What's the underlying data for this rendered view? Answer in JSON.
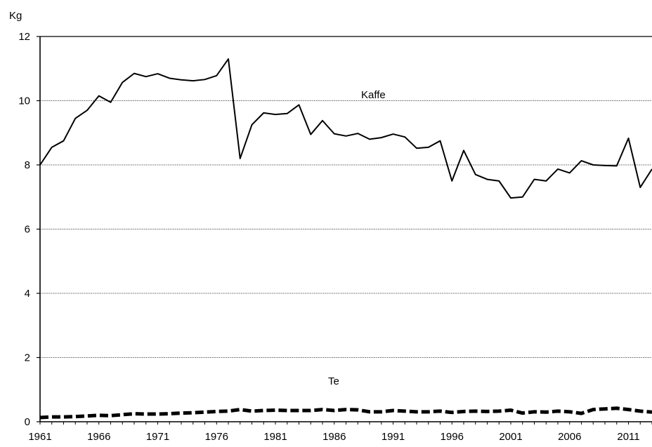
{
  "chart_data": {
    "type": "line",
    "ylabel": "Kg",
    "ylim": [
      0,
      12
    ],
    "yticks": [
      0,
      2,
      4,
      6,
      8,
      10,
      12
    ],
    "xlim": [
      1961,
      2013
    ],
    "xticks": [
      1961,
      1966,
      1971,
      1976,
      1981,
      1986,
      1991,
      1996,
      2001,
      2006,
      2011
    ],
    "grid": "horizontal dotted",
    "series": [
      {
        "name": "Kaffe",
        "style": "solid",
        "x": [
          1961,
          1962,
          1963,
          1964,
          1965,
          1966,
          1967,
          1968,
          1969,
          1970,
          1971,
          1972,
          1973,
          1974,
          1975,
          1976,
          1977,
          1978,
          1979,
          1980,
          1981,
          1982,
          1983,
          1984,
          1985,
          1986,
          1987,
          1988,
          1989,
          1990,
          1991,
          1992,
          1993,
          1994,
          1995,
          1996,
          1997,
          1998,
          1999,
          2000,
          2001,
          2002,
          2003,
          2004,
          2005,
          2006,
          2007,
          2008,
          2009,
          2010,
          2011,
          2012,
          2013
        ],
        "values": [
          8.0,
          8.55,
          8.75,
          9.45,
          9.7,
          10.15,
          9.95,
          10.57,
          10.85,
          10.75,
          10.84,
          10.7,
          10.65,
          10.62,
          10.66,
          10.78,
          11.3,
          8.2,
          9.25,
          9.62,
          9.57,
          9.6,
          9.87,
          8.95,
          9.38,
          8.97,
          8.9,
          8.98,
          8.8,
          8.85,
          8.96,
          8.87,
          8.52,
          8.55,
          8.75,
          7.5,
          8.45,
          7.7,
          7.55,
          7.5,
          6.97,
          7.0,
          7.55,
          7.5,
          7.87,
          7.75,
          8.13,
          8.0,
          7.98,
          7.97,
          8.83,
          7.3,
          7.87
        ]
      },
      {
        "name": "Te",
        "style": "dashed",
        "x": [
          1961,
          1962,
          1963,
          1964,
          1965,
          1966,
          1967,
          1968,
          1969,
          1970,
          1971,
          1972,
          1973,
          1974,
          1975,
          1976,
          1977,
          1978,
          1979,
          1980,
          1981,
          1982,
          1983,
          1984,
          1985,
          1986,
          1987,
          1988,
          1989,
          1990,
          1991,
          1992,
          1993,
          1994,
          1995,
          1996,
          1997,
          1998,
          1999,
          2000,
          2001,
          2002,
          2003,
          2004,
          2005,
          2006,
          2007,
          2008,
          2009,
          2010,
          2011,
          2012,
          2013
        ],
        "values": [
          0.13,
          0.15,
          0.15,
          0.16,
          0.18,
          0.2,
          0.19,
          0.22,
          0.25,
          0.24,
          0.24,
          0.25,
          0.27,
          0.28,
          0.3,
          0.32,
          0.33,
          0.38,
          0.33,
          0.35,
          0.36,
          0.35,
          0.35,
          0.35,
          0.38,
          0.35,
          0.38,
          0.37,
          0.31,
          0.31,
          0.35,
          0.33,
          0.31,
          0.31,
          0.33,
          0.29,
          0.32,
          0.33,
          0.32,
          0.33,
          0.36,
          0.27,
          0.31,
          0.3,
          0.33,
          0.31,
          0.26,
          0.38,
          0.4,
          0.42,
          0.38,
          0.33,
          0.3
        ]
      }
    ]
  }
}
